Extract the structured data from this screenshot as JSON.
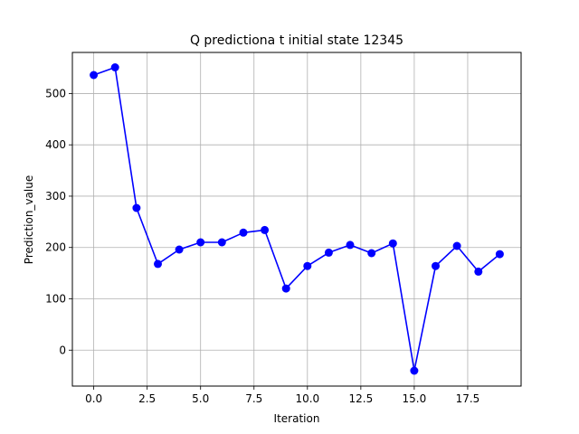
{
  "chart_data": {
    "type": "line",
    "title": "Q predictiona t initial state 12345",
    "xlabel": "Iteration",
    "ylabel": "Prediction_value",
    "xlim": [
      -1.0,
      20.0
    ],
    "ylim": [
      -70,
      580
    ],
    "x_ticks": [
      0.0,
      2.5,
      5.0,
      7.5,
      10.0,
      12.5,
      15.0,
      17.5
    ],
    "x_tick_labels": [
      "0.0",
      "2.5",
      "5.0",
      "7.5",
      "10.0",
      "12.5",
      "15.0",
      "17.5"
    ],
    "y_ticks": [
      0,
      100,
      200,
      300,
      400,
      500
    ],
    "y_tick_labels": [
      "0",
      "100",
      "200",
      "300",
      "400",
      "500"
    ],
    "grid": true,
    "series": [
      {
        "color": "#0000ff",
        "marker": "circle",
        "x": [
          0,
          1,
          2,
          3,
          4,
          5,
          6,
          7,
          8,
          9,
          10,
          11,
          12,
          13,
          14,
          15,
          16,
          17,
          18,
          19
        ],
        "values": [
          536,
          551,
          277,
          168,
          196,
          210,
          210,
          229,
          234,
          120,
          164,
          190,
          205,
          189,
          208,
          -40,
          164,
          203,
          153,
          187
        ]
      }
    ]
  }
}
